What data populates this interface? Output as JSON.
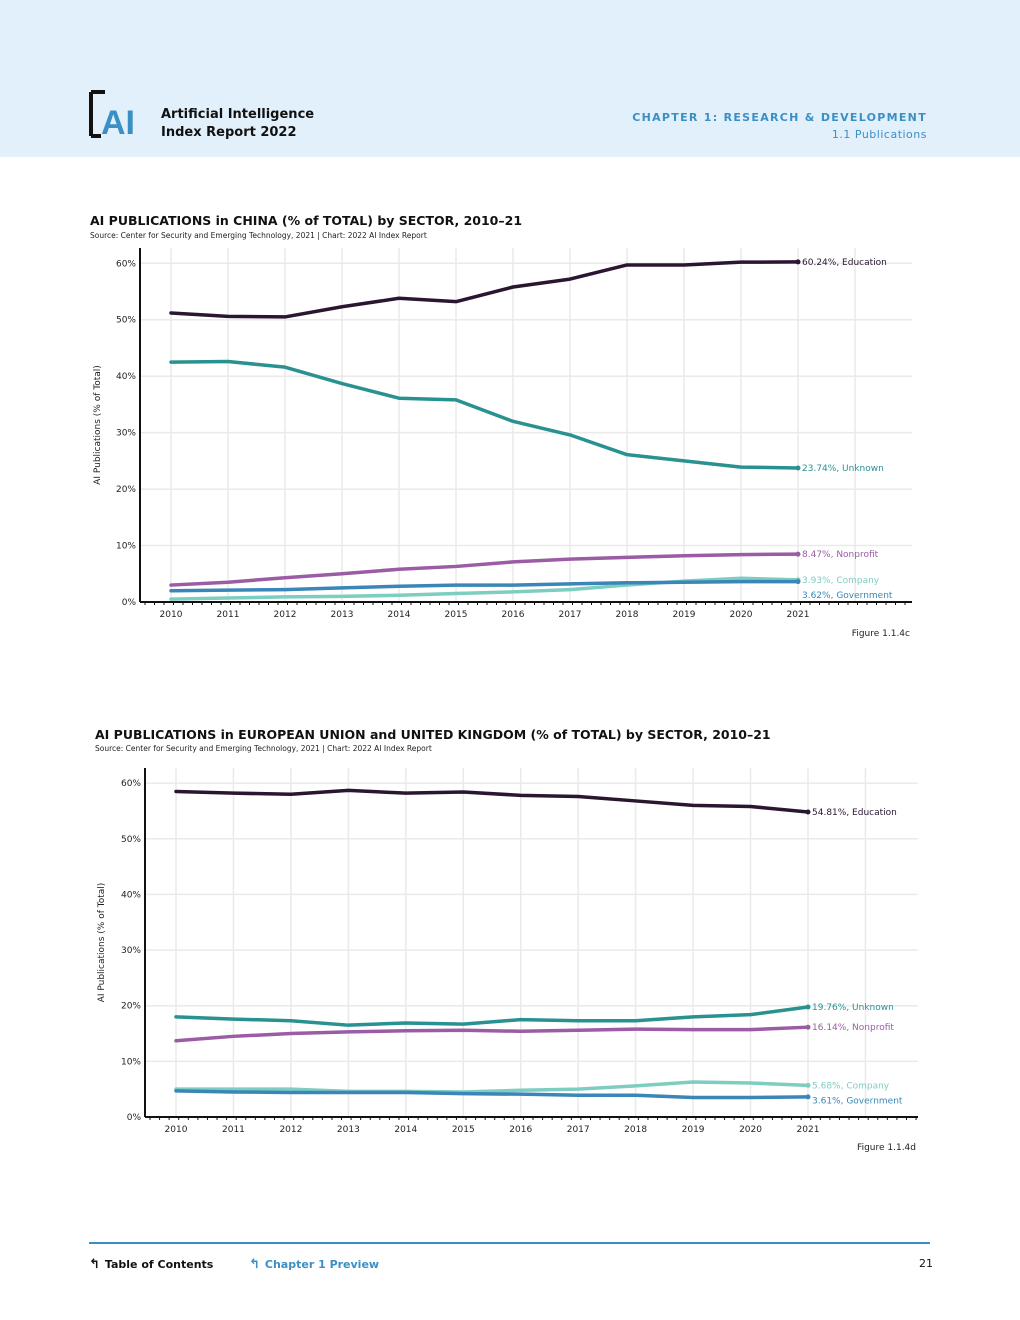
{
  "header": {
    "logo_text": "AI",
    "report_title_line1": "Artificial Intelligence",
    "report_title_line2": "Index Report 2022",
    "chapter": "CHAPTER 1: RESEARCH & DEVELOPMENT",
    "section": "1.1 Publications",
    "background_color": "#e2f0fb",
    "accent_color": "#3a8fc4"
  },
  "chart_data": [
    {
      "type": "line",
      "title": "AI PUBLICATIONS in CHINA (% of TOTAL) by SECTOR, 2010–21",
      "source": "Source: Center for Security and Emerging Technology, 2021 | Chart: 2022 AI Index Report",
      "figure_label": "Figure 1.1.4c",
      "ylabel": "AI Publications (% of Total)",
      "xlabel": "",
      "x": [
        2010,
        2011,
        2012,
        2013,
        2014,
        2015,
        2016,
        2017,
        2018,
        2019,
        2020,
        2021
      ],
      "ylim": [
        0,
        62
      ],
      "yticks": [
        0,
        10,
        20,
        30,
        40,
        50,
        60
      ],
      "ytick_labels": [
        "0%",
        "10%",
        "20%",
        "30%",
        "40%",
        "50%",
        "60%"
      ],
      "grid": true,
      "series": [
        {
          "name": "Education",
          "end_label": "60.24%, Education",
          "color": "#2a1630",
          "values": [
            51.2,
            50.6,
            50.5,
            52.3,
            53.8,
            53.2,
            55.8,
            57.2,
            59.7,
            59.7,
            60.2,
            60.24
          ]
        },
        {
          "name": "Unknown",
          "end_label": "23.74%, Unknown",
          "color": "#2a9191",
          "values": [
            42.5,
            42.6,
            41.6,
            38.7,
            36.1,
            35.8,
            32.0,
            29.6,
            26.1,
            25.0,
            23.9,
            23.74
          ]
        },
        {
          "name": "Nonprofit",
          "end_label": "8.47%, Nonprofit",
          "color": "#9b5ba5",
          "values": [
            3.0,
            3.5,
            4.3,
            5.0,
            5.8,
            6.3,
            7.1,
            7.6,
            7.9,
            8.2,
            8.4,
            8.47
          ]
        },
        {
          "name": "Company",
          "end_label": "3.93%, Company",
          "color": "#7ecdc1",
          "values": [
            0.5,
            0.7,
            0.9,
            1.0,
            1.2,
            1.5,
            1.8,
            2.2,
            3.0,
            3.7,
            4.2,
            3.93
          ]
        },
        {
          "name": "Government",
          "end_label": "3.62%, Government",
          "color": "#3a86b8",
          "values": [
            2.0,
            2.1,
            2.2,
            2.5,
            2.8,
            3.0,
            3.0,
            3.2,
            3.4,
            3.5,
            3.6,
            3.62
          ]
        }
      ]
    },
    {
      "type": "line",
      "title": "AI PUBLICATIONS in EUROPEAN UNION and UNITED KINGDOM (% of TOTAL) by SECTOR, 2010–21",
      "source": "Source: Center for Security and Emerging Technology, 2021 | Chart: 2022 AI Index Report",
      "figure_label": "Figure 1.1.4d",
      "ylabel": "AI Publications (% of Total)",
      "xlabel": "",
      "x": [
        2010,
        2011,
        2012,
        2013,
        2014,
        2015,
        2016,
        2017,
        2018,
        2019,
        2020,
        2021
      ],
      "ylim": [
        0,
        62
      ],
      "yticks": [
        0,
        10,
        20,
        30,
        40,
        50,
        60
      ],
      "ytick_labels": [
        "0%",
        "10%",
        "20%",
        "30%",
        "40%",
        "50%",
        "60%"
      ],
      "grid": true,
      "series": [
        {
          "name": "Education",
          "end_label": "54.81%, Education",
          "color": "#2a1630",
          "values": [
            58.5,
            58.2,
            58.0,
            58.7,
            58.2,
            58.4,
            57.8,
            57.6,
            56.8,
            56.0,
            55.8,
            54.81
          ]
        },
        {
          "name": "Unknown",
          "end_label": "19.76%, Unknown",
          "color": "#2a9191",
          "values": [
            18.0,
            17.6,
            17.3,
            16.5,
            16.9,
            16.7,
            17.5,
            17.3,
            17.3,
            18.0,
            18.4,
            19.76
          ]
        },
        {
          "name": "Nonprofit",
          "end_label": "16.14%, Nonprofit",
          "color": "#9b5ba5",
          "values": [
            13.7,
            14.5,
            15.0,
            15.3,
            15.5,
            15.6,
            15.4,
            15.6,
            15.8,
            15.7,
            15.7,
            16.14
          ]
        },
        {
          "name": "Company",
          "end_label": "5.68%, Company",
          "color": "#7ecdc1",
          "values": [
            5.0,
            5.0,
            5.0,
            4.6,
            4.6,
            4.5,
            4.8,
            5.0,
            5.6,
            6.3,
            6.1,
            5.68
          ]
        },
        {
          "name": "Government",
          "end_label": "3.61%, Government",
          "color": "#3a86b8",
          "values": [
            4.7,
            4.5,
            4.4,
            4.4,
            4.4,
            4.2,
            4.1,
            3.9,
            3.9,
            3.5,
            3.5,
            3.61
          ]
        }
      ]
    }
  ],
  "footer": {
    "toc_icon": "return-arrow-icon",
    "toc_label": "Table of Contents",
    "preview_icon": "return-arrow-icon",
    "preview_label": "Chapter 1 Preview",
    "page_number": "21"
  }
}
